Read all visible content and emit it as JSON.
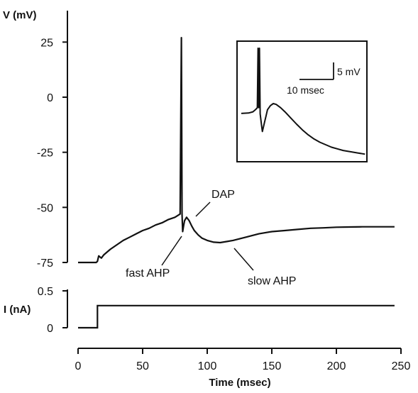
{
  "chart_data": [
    {
      "type": "line",
      "panel": "voltage",
      "ylabel": "V (mV)",
      "xlabel": "Time  (msec)",
      "xlim": [
        0,
        250
      ],
      "ylim": [
        -75,
        30
      ],
      "yticks": [
        25,
        0,
        -25,
        -50,
        -75
      ],
      "ytick_labels": [
        "25",
        "0",
        "-25",
        "-50",
        "-75"
      ],
      "xticks": [
        0,
        50,
        100,
        150,
        200,
        250
      ],
      "xtick_labels": [
        "0",
        "50",
        "100",
        "150",
        "200",
        "250"
      ],
      "series": [
        {
          "x": [
            0,
            5,
            10,
            14,
            15,
            16,
            18,
            20,
            25,
            30,
            35,
            40,
            45,
            50,
            55,
            60,
            65,
            70,
            75,
            79,
            80,
            80.5,
            81,
            81.8,
            82.5,
            84,
            86,
            88,
            90,
            93,
            96,
            100,
            105,
            110,
            115,
            120,
            130,
            140,
            150,
            160,
            170,
            180,
            190,
            200,
            210,
            220,
            230,
            240,
            245
          ],
          "y": [
            -75,
            -75,
            -75,
            -75,
            -74.5,
            -72,
            -73,
            -71.5,
            -69,
            -67,
            -65,
            -63.5,
            -62,
            -60.5,
            -59.5,
            -58,
            -57,
            -55.5,
            -54.5,
            -53,
            27,
            -53,
            -61,
            -58,
            -56,
            -54.5,
            -56,
            -58.5,
            -60.5,
            -62.5,
            -64,
            -65,
            -65.8,
            -66,
            -65.5,
            -65,
            -63.5,
            -62,
            -61,
            -60.5,
            -60,
            -59.5,
            -59.3,
            -59,
            -58.9,
            -58.8,
            -58.8,
            -58.8,
            -58.8
          ]
        }
      ],
      "annotations": [
        "DAP",
        "fast AHP",
        "slow AHP"
      ]
    },
    {
      "type": "line",
      "panel": "current",
      "ylabel": "I (nA)",
      "ylim": [
        0,
        0.5
      ],
      "yticks": [
        0.5,
        0
      ],
      "ytick_labels": [
        "0.5",
        "0"
      ],
      "series": [
        {
          "x": [
            0,
            15,
            15,
            245
          ],
          "y": [
            0,
            0,
            0.3,
            0.3
          ]
        }
      ]
    },
    {
      "type": "line",
      "panel": "inset",
      "scale_bar_voltage": "5 mV",
      "scale_bar_time": "10 msec",
      "series": [
        {
          "x": [
            0,
            5,
            8,
            10,
            11,
            11.5,
            12,
            12.5,
            13,
            14,
            14.5,
            15,
            16,
            17,
            18,
            20,
            22,
            24,
            27,
            30,
            34,
            38,
            42,
            46,
            50,
            54,
            58,
            62,
            66,
            70,
            75,
            80,
            85
          ],
          "y": [
            -2.4,
            -2.3,
            -2.0,
            -1.4,
            -1.0,
            30,
            -1.0,
            30,
            -2.5,
            -5.5,
            -6.8,
            -6.0,
            -4.5,
            -3.0,
            -1.5,
            -0.5,
            0,
            -0.2,
            -1.0,
            -2.0,
            -3.5,
            -5.0,
            -6.4,
            -7.6,
            -8.6,
            -9.4,
            -10.0,
            -10.6,
            -11.0,
            -11.4,
            -11.7,
            -12.0,
            -12.3
          ]
        }
      ]
    }
  ]
}
